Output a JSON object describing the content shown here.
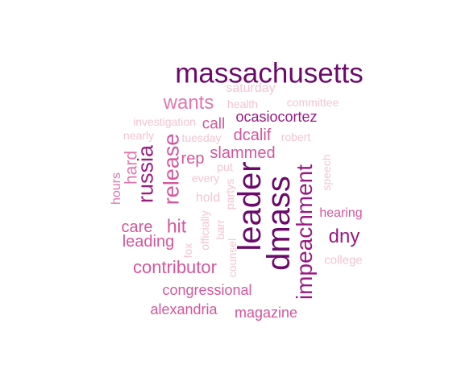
{
  "words": [
    "massachusetts",
    "saturday",
    "wants",
    "health",
    "committee",
    "investigation",
    "call",
    "ocasiocortez",
    "nearly",
    "tuesday",
    "dcalif",
    "robert",
    "russia",
    "release",
    "hard",
    "slammed",
    "rep",
    "put",
    "every",
    "partys",
    "leader",
    "dmass",
    "impeachment",
    "speech",
    "hours",
    "hold",
    "hearing",
    "care",
    "hit",
    "officially",
    "barr",
    "dny",
    "leading",
    "fox",
    "counsel",
    "college",
    "contributor",
    "congressional",
    "alexandria",
    "magazine"
  ]
}
